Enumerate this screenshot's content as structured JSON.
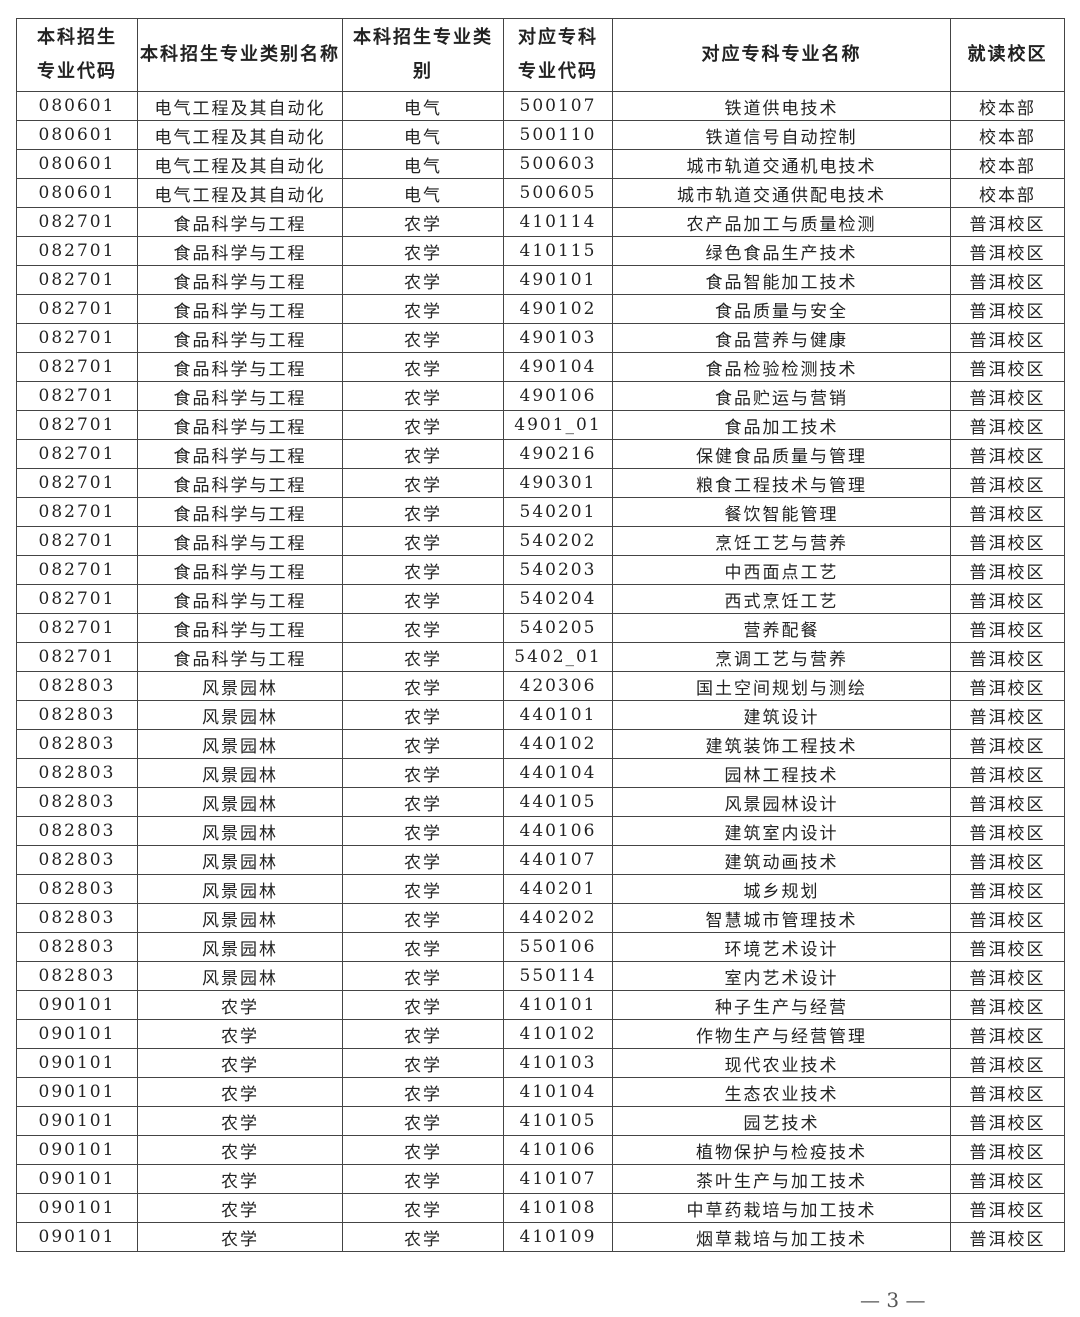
{
  "table": {
    "header": [
      "本科招生专业代码",
      "本科招生专业类别名称",
      "本科招生专业类别",
      "对应专科专业代码",
      "对应专科专业名称",
      "就读校区"
    ],
    "rows": [
      [
        "080601",
        "电气工程及其自动化",
        "电气",
        "500107",
        "铁道供电技术",
        "校本部"
      ],
      [
        "080601",
        "电气工程及其自动化",
        "电气",
        "500110",
        "铁道信号自动控制",
        "校本部"
      ],
      [
        "080601",
        "电气工程及其自动化",
        "电气",
        "500603",
        "城市轨道交通机电技术",
        "校本部"
      ],
      [
        "080601",
        "电气工程及其自动化",
        "电气",
        "500605",
        "城市轨道交通供配电技术",
        "校本部"
      ],
      [
        "082701",
        "食品科学与工程",
        "农学",
        "410114",
        "农产品加工与质量检测",
        "普洱校区"
      ],
      [
        "082701",
        "食品科学与工程",
        "农学",
        "410115",
        "绿色食品生产技术",
        "普洱校区"
      ],
      [
        "082701",
        "食品科学与工程",
        "农学",
        "490101",
        "食品智能加工技术",
        "普洱校区"
      ],
      [
        "082701",
        "食品科学与工程",
        "农学",
        "490102",
        "食品质量与安全",
        "普洱校区"
      ],
      [
        "082701",
        "食品科学与工程",
        "农学",
        "490103",
        "食品营养与健康",
        "普洱校区"
      ],
      [
        "082701",
        "食品科学与工程",
        "农学",
        "490104",
        "食品检验检测技术",
        "普洱校区"
      ],
      [
        "082701",
        "食品科学与工程",
        "农学",
        "490106",
        "食品贮运与营销",
        "普洱校区"
      ],
      [
        "082701",
        "食品科学与工程",
        "农学",
        "4901_01",
        "食品加工技术",
        "普洱校区"
      ],
      [
        "082701",
        "食品科学与工程",
        "农学",
        "490216",
        "保健食品质量与管理",
        "普洱校区"
      ],
      [
        "082701",
        "食品科学与工程",
        "农学",
        "490301",
        "粮食工程技术与管理",
        "普洱校区"
      ],
      [
        "082701",
        "食品科学与工程",
        "农学",
        "540201",
        "餐饮智能管理",
        "普洱校区"
      ],
      [
        "082701",
        "食品科学与工程",
        "农学",
        "540202",
        "烹饪工艺与营养",
        "普洱校区"
      ],
      [
        "082701",
        "食品科学与工程",
        "农学",
        "540203",
        "中西面点工艺",
        "普洱校区"
      ],
      [
        "082701",
        "食品科学与工程",
        "农学",
        "540204",
        "西式烹饪工艺",
        "普洱校区"
      ],
      [
        "082701",
        "食品科学与工程",
        "农学",
        "540205",
        "营养配餐",
        "普洱校区"
      ],
      [
        "082701",
        "食品科学与工程",
        "农学",
        "5402_01",
        "烹调工艺与营养",
        "普洱校区"
      ],
      [
        "082803",
        "风景园林",
        "农学",
        "420306",
        "国土空间规划与测绘",
        "普洱校区"
      ],
      [
        "082803",
        "风景园林",
        "农学",
        "440101",
        "建筑设计",
        "普洱校区"
      ],
      [
        "082803",
        "风景园林",
        "农学",
        "440102",
        "建筑装饰工程技术",
        "普洱校区"
      ],
      [
        "082803",
        "风景园林",
        "农学",
        "440104",
        "园林工程技术",
        "普洱校区"
      ],
      [
        "082803",
        "风景园林",
        "农学",
        "440105",
        "风景园林设计",
        "普洱校区"
      ],
      [
        "082803",
        "风景园林",
        "农学",
        "440106",
        "建筑室内设计",
        "普洱校区"
      ],
      [
        "082803",
        "风景园林",
        "农学",
        "440107",
        "建筑动画技术",
        "普洱校区"
      ],
      [
        "082803",
        "风景园林",
        "农学",
        "440201",
        "城乡规划",
        "普洱校区"
      ],
      [
        "082803",
        "风景园林",
        "农学",
        "440202",
        "智慧城市管理技术",
        "普洱校区"
      ],
      [
        "082803",
        "风景园林",
        "农学",
        "550106",
        "环境艺术设计",
        "普洱校区"
      ],
      [
        "082803",
        "风景园林",
        "农学",
        "550114",
        "室内艺术设计",
        "普洱校区"
      ],
      [
        "090101",
        "农学",
        "农学",
        "410101",
        "种子生产与经营",
        "普洱校区"
      ],
      [
        "090101",
        "农学",
        "农学",
        "410102",
        "作物生产与经营管理",
        "普洱校区"
      ],
      [
        "090101",
        "农学",
        "农学",
        "410103",
        "现代农业技术",
        "普洱校区"
      ],
      [
        "090101",
        "农学",
        "农学",
        "410104",
        "生态农业技术",
        "普洱校区"
      ],
      [
        "090101",
        "农学",
        "农学",
        "410105",
        "园艺技术",
        "普洱校区"
      ],
      [
        "090101",
        "农学",
        "农学",
        "410106",
        "植物保护与检疫技术",
        "普洱校区"
      ],
      [
        "090101",
        "农学",
        "农学",
        "410107",
        "茶叶生产与加工技术",
        "普洱校区"
      ],
      [
        "090101",
        "农学",
        "农学",
        "410108",
        "中草药栽培与加工技术",
        "普洱校区"
      ],
      [
        "090101",
        "农学",
        "农学",
        "410109",
        "烟草栽培与加工技术",
        "普洱校区"
      ]
    ]
  },
  "footer": {
    "page_number": "— 3 —"
  }
}
